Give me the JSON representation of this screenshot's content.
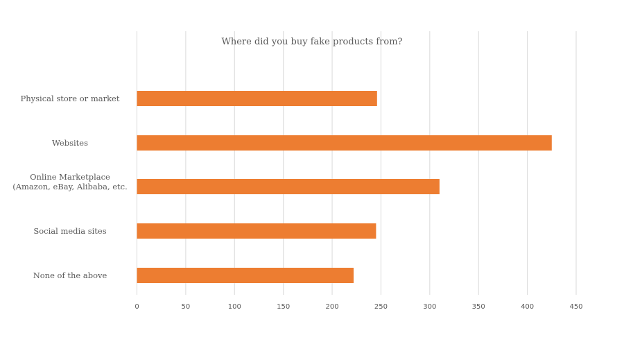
{
  "chart_data": {
    "type": "bar",
    "orientation": "horizontal",
    "title": "Where did you buy fake products from?",
    "categories": [
      "Physical store or market",
      "Websites",
      "Online Marketplace (Amazon, eBay,  Alibaba, etc.",
      "Social media sites",
      "None of the above"
    ],
    "values": [
      246,
      425,
      310,
      245,
      222
    ],
    "xlim": [
      0,
      450
    ],
    "xticks": [
      "0",
      "50",
      "100",
      "150",
      "200",
      "250",
      "300",
      "350",
      "400",
      "450"
    ],
    "grid": true,
    "bar_color": "#ED7D31",
    "grid_color": "#D9D9D9"
  }
}
